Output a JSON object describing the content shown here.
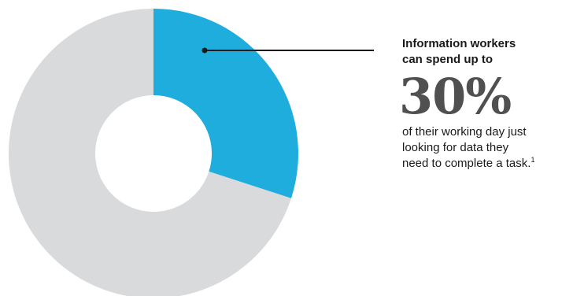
{
  "chart_data": {
    "type": "pie",
    "title": "",
    "slices": [
      {
        "label": "",
        "value": 30,
        "color": "#1fadde"
      },
      {
        "label": "",
        "value": 70,
        "color": "#d9dadc"
      }
    ]
  },
  "callout": {
    "headline_line1": "Information workers",
    "headline_line2": "can spend up to",
    "percent": "30%",
    "body_line1": "of their working day just",
    "body_line2": "looking for data they",
    "body_line3": "need to complete a task.",
    "footnote": "1"
  }
}
